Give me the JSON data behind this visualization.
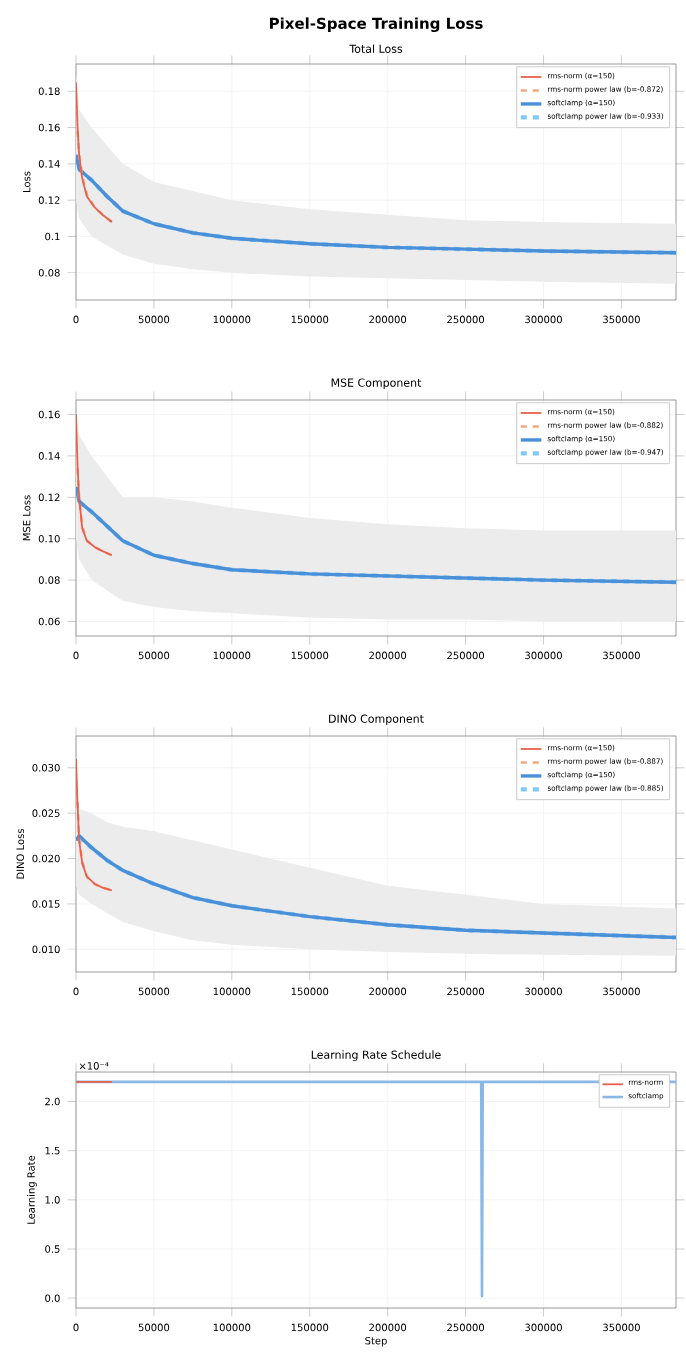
{
  "chart_data": [
    {
      "type": "line",
      "title": "Pixel-Space Training Loss",
      "subtitle": "Total Loss",
      "ylabel": "Loss",
      "xlim": [
        0,
        385000
      ],
      "ylim": [
        0.065,
        0.195
      ],
      "xticks": [
        0,
        50000,
        100000,
        150000,
        200000,
        250000,
        300000,
        350000
      ],
      "yticks": [
        0.08,
        0.1,
        {
          "value": 0.12,
          "label": "0.12"
        },
        0.14,
        0.16,
        0.18
      ],
      "grid": true,
      "legend": "top right",
      "series": [
        {
          "name": "rms-norm (α=150)",
          "color": "#e8604c",
          "line_style": "solid",
          "x": [
            0,
            1000,
            2000,
            4000,
            7000,
            12000,
            17000,
            23000
          ],
          "values": [
            0.185,
            0.16,
            0.145,
            0.132,
            0.122,
            0.116,
            0.112,
            0.108
          ]
        },
        {
          "name": "rms-norm power law (b=-0.872)",
          "color": "#f4a582",
          "line_style": "dashed",
          "x": [
            1000,
            2000,
            4000,
            7000,
            12000,
            17000,
            23000
          ],
          "values": [
            0.158,
            0.146,
            0.133,
            0.123,
            0.116,
            0.112,
            0.108
          ]
        },
        {
          "name": "softclamp (α=150)",
          "color": "#4a90d9",
          "line_style": "solid",
          "x": [
            0,
            2000,
            10000,
            20000,
            30000,
            50000,
            75000,
            100000,
            150000,
            200000,
            250000,
            300000,
            385000
          ],
          "values": [
            0.145,
            0.137,
            0.131,
            0.122,
            0.114,
            0.107,
            0.102,
            0.099,
            0.096,
            0.094,
            0.093,
            0.092,
            0.091
          ],
          "lower": [
            0.12,
            0.11,
            0.1,
            0.095,
            0.09,
            0.085,
            0.082,
            0.08,
            0.078,
            0.077,
            0.076,
            0.075,
            0.074
          ],
          "upper": [
            0.19,
            0.17,
            0.16,
            0.15,
            0.14,
            0.13,
            0.125,
            0.12,
            0.115,
            0.112,
            0.109,
            0.108,
            0.107
          ]
        },
        {
          "name": "softclamp power law (b=-0.933)",
          "color": "#7fc8f8",
          "line_style": "dashed",
          "x": [
            2000,
            10000,
            20000,
            30000,
            50000,
            75000,
            100000,
            150000,
            200000,
            250000,
            300000,
            385000
          ],
          "values": [
            0.137,
            0.131,
            0.122,
            0.114,
            0.107,
            0.102,
            0.099,
            0.096,
            0.094,
            0.093,
            0.092,
            0.091
          ]
        }
      ]
    },
    {
      "type": "line",
      "title": "MSE Component",
      "ylabel": "MSE Loss",
      "xlim": [
        0,
        385000
      ],
      "ylim": [
        0.053,
        0.167
      ],
      "xticks": [
        0,
        50000,
        100000,
        150000,
        200000,
        250000,
        300000,
        350000
      ],
      "yticks": [
        0.06,
        0.08,
        {
          "value": 0.1,
          "label": "0.10"
        },
        0.12,
        0.14,
        0.16
      ],
      "grid": true,
      "legend": "top right",
      "series": [
        {
          "name": "rms-norm (α=150)",
          "color": "#e8604c",
          "line_style": "solid",
          "x": [
            0,
            1000,
            2000,
            4000,
            7000,
            12000,
            17000,
            23000
          ],
          "values": [
            0.16,
            0.135,
            0.12,
            0.105,
            0.099,
            0.096,
            0.094,
            0.092
          ]
        },
        {
          "name": "rms-norm power law (b=-0.882)",
          "color": "#f4a582",
          "line_style": "dashed",
          "x": [
            1000,
            2000,
            4000,
            7000,
            12000,
            17000,
            23000
          ],
          "values": [
            0.134,
            0.12,
            0.106,
            0.099,
            0.096,
            0.094,
            0.092
          ]
        },
        {
          "name": "softclamp (α=150)",
          "color": "#4a90d9",
          "line_style": "solid",
          "x": [
            0,
            2000,
            10000,
            20000,
            30000,
            50000,
            75000,
            100000,
            150000,
            200000,
            250000,
            300000,
            385000
          ],
          "values": [
            0.125,
            0.118,
            0.113,
            0.106,
            0.099,
            0.092,
            0.088,
            0.085,
            0.083,
            0.082,
            0.081,
            0.08,
            0.079
          ],
          "lower": [
            0.1,
            0.09,
            0.08,
            0.075,
            0.07,
            0.067,
            0.065,
            0.064,
            0.062,
            0.061,
            0.061,
            0.06,
            0.06
          ],
          "upper": [
            0.16,
            0.15,
            0.14,
            0.13,
            0.12,
            0.12,
            0.118,
            0.115,
            0.11,
            0.107,
            0.105,
            0.104,
            0.104
          ]
        },
        {
          "name": "softclamp power law (b=-0.947)",
          "color": "#7fc8f8",
          "line_style": "dashed",
          "x": [
            2000,
            10000,
            20000,
            30000,
            50000,
            75000,
            100000,
            150000,
            200000,
            250000,
            300000,
            385000
          ],
          "values": [
            0.118,
            0.113,
            0.106,
            0.099,
            0.092,
            0.088,
            0.085,
            0.083,
            0.082,
            0.081,
            0.08,
            0.079
          ]
        }
      ]
    },
    {
      "type": "line",
      "title": "DINO Component",
      "ylabel": "DINO Loss",
      "xlim": [
        0,
        385000
      ],
      "ylim": [
        0.0075,
        0.0335
      ],
      "xticks": [
        0,
        50000,
        100000,
        150000,
        200000,
        250000,
        300000,
        350000
      ],
      "yticks": [
        {
          "value": 0.01,
          "label": "0.010"
        },
        0.015,
        {
          "value": 0.02,
          "label": "0.020"
        },
        0.025,
        {
          "value": 0.03,
          "label": "0.030"
        }
      ],
      "grid": true,
      "legend": "top right",
      "series": [
        {
          "name": "rms-norm (α=150)",
          "color": "#e8604c",
          "line_style": "solid",
          "x": [
            0,
            1000,
            2000,
            4000,
            7000,
            12000,
            17000,
            23000
          ],
          "values": [
            0.031,
            0.026,
            0.022,
            0.0195,
            0.018,
            0.0172,
            0.0168,
            0.0165
          ]
        },
        {
          "name": "rms-norm power law (b=-0.887)",
          "color": "#f4a582",
          "line_style": "dashed",
          "x": [
            1000,
            2000,
            4000,
            7000,
            12000,
            17000,
            23000
          ],
          "values": [
            0.0262,
            0.0222,
            0.0196,
            0.018,
            0.0172,
            0.0168,
            0.0165
          ]
        },
        {
          "name": "softclamp (α=150)",
          "color": "#4a90d9",
          "line_style": "solid",
          "x": [
            0,
            2000,
            10000,
            20000,
            30000,
            50000,
            75000,
            100000,
            150000,
            200000,
            250000,
            300000,
            385000
          ],
          "values": [
            0.022,
            0.0225,
            0.0212,
            0.0198,
            0.0187,
            0.0172,
            0.0157,
            0.0148,
            0.0136,
            0.0127,
            0.0121,
            0.0118,
            0.0113
          ],
          "lower": [
            0.017,
            0.016,
            0.015,
            0.014,
            0.013,
            0.012,
            0.011,
            0.0105,
            0.01,
            0.0097,
            0.0095,
            0.0094,
            0.0093
          ],
          "upper": [
            0.026,
            0.0255,
            0.025,
            0.024,
            0.0235,
            0.023,
            0.022,
            0.021,
            0.019,
            0.017,
            0.016,
            0.015,
            0.0145
          ]
        },
        {
          "name": "softclamp power law (b=-0.885)",
          "color": "#7fc8f8",
          "line_style": "dashed",
          "x": [
            2000,
            10000,
            20000,
            30000,
            50000,
            75000,
            100000,
            150000,
            200000,
            250000,
            300000,
            385000
          ],
          "values": [
            0.0224,
            0.0212,
            0.0198,
            0.0187,
            0.0172,
            0.0157,
            0.0148,
            0.0136,
            0.0127,
            0.0121,
            0.0118,
            0.0113
          ]
        }
      ]
    },
    {
      "type": "line",
      "title": "Learning Rate Schedule",
      "xlabel": "Step",
      "ylabel": "Learning Rate",
      "annotations": [
        "×10⁻⁴"
      ],
      "xlim": [
        0,
        385000
      ],
      "ylim": [
        -0.1,
        2.3
      ],
      "xticks": [
        0,
        50000,
        100000,
        150000,
        200000,
        250000,
        300000,
        350000
      ],
      "yticks": [
        {
          "value": 0,
          "label": "0.0"
        },
        0.5,
        {
          "value": 1,
          "label": "1.0"
        },
        1.5,
        {
          "value": 2,
          "label": "2.0"
        }
      ],
      "grid": true,
      "legend": "top right",
      "series": [
        {
          "name": "rms-norm",
          "color": "#e8604c",
          "line_style": "solid",
          "x": [
            0,
            23000
          ],
          "values": [
            2.2,
            2.2
          ]
        },
        {
          "name": "softclamp",
          "color": "#8ab8e6",
          "line_style": "solid",
          "x": [
            0,
            260000,
            260500,
            261000,
            385000
          ],
          "values": [
            2.2,
            2.2,
            0.02,
            2.2,
            2.2
          ]
        }
      ]
    }
  ]
}
